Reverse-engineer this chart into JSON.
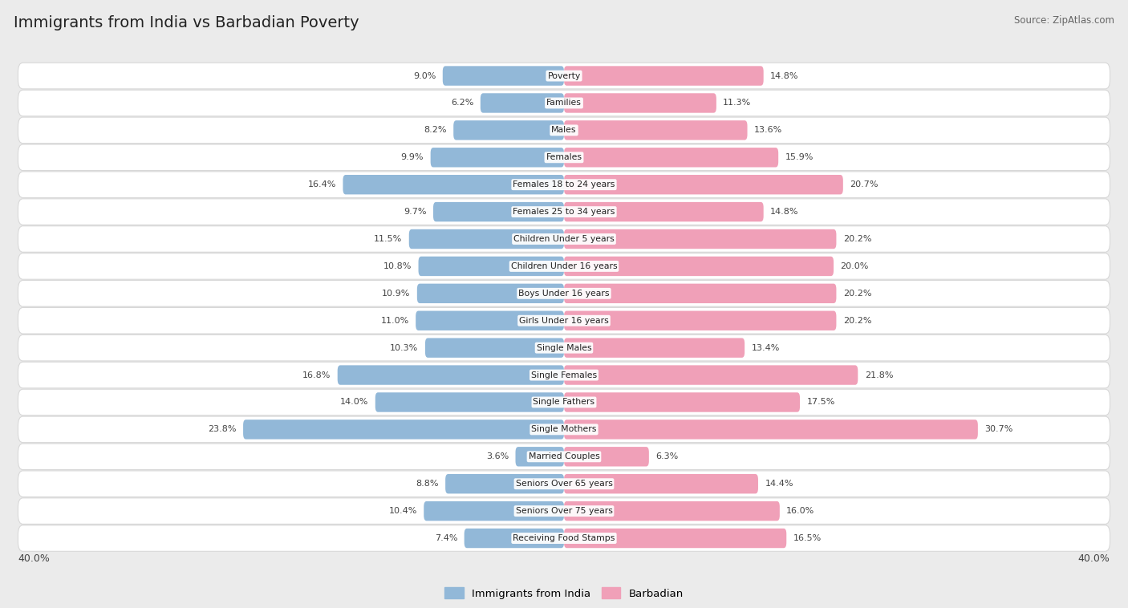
{
  "title": "Immigrants from India vs Barbadian Poverty",
  "source": "Source: ZipAtlas.com",
  "categories": [
    "Poverty",
    "Families",
    "Males",
    "Females",
    "Females 18 to 24 years",
    "Females 25 to 34 years",
    "Children Under 5 years",
    "Children Under 16 years",
    "Boys Under 16 years",
    "Girls Under 16 years",
    "Single Males",
    "Single Females",
    "Single Fathers",
    "Single Mothers",
    "Married Couples",
    "Seniors Over 65 years",
    "Seniors Over 75 years",
    "Receiving Food Stamps"
  ],
  "india_values": [
    9.0,
    6.2,
    8.2,
    9.9,
    16.4,
    9.7,
    11.5,
    10.8,
    10.9,
    11.0,
    10.3,
    16.8,
    14.0,
    23.8,
    3.6,
    8.8,
    10.4,
    7.4
  ],
  "barbadian_values": [
    14.8,
    11.3,
    13.6,
    15.9,
    20.7,
    14.8,
    20.2,
    20.0,
    20.2,
    20.2,
    13.4,
    21.8,
    17.5,
    30.7,
    6.3,
    14.4,
    16.0,
    16.5
  ],
  "india_color": "#92b8d8",
  "barbadian_color": "#f0a0b8",
  "max_val": 40.0,
  "background_color": "#ebebeb",
  "legend_india": "Immigrants from India",
  "legend_barbadian": "Barbadian"
}
